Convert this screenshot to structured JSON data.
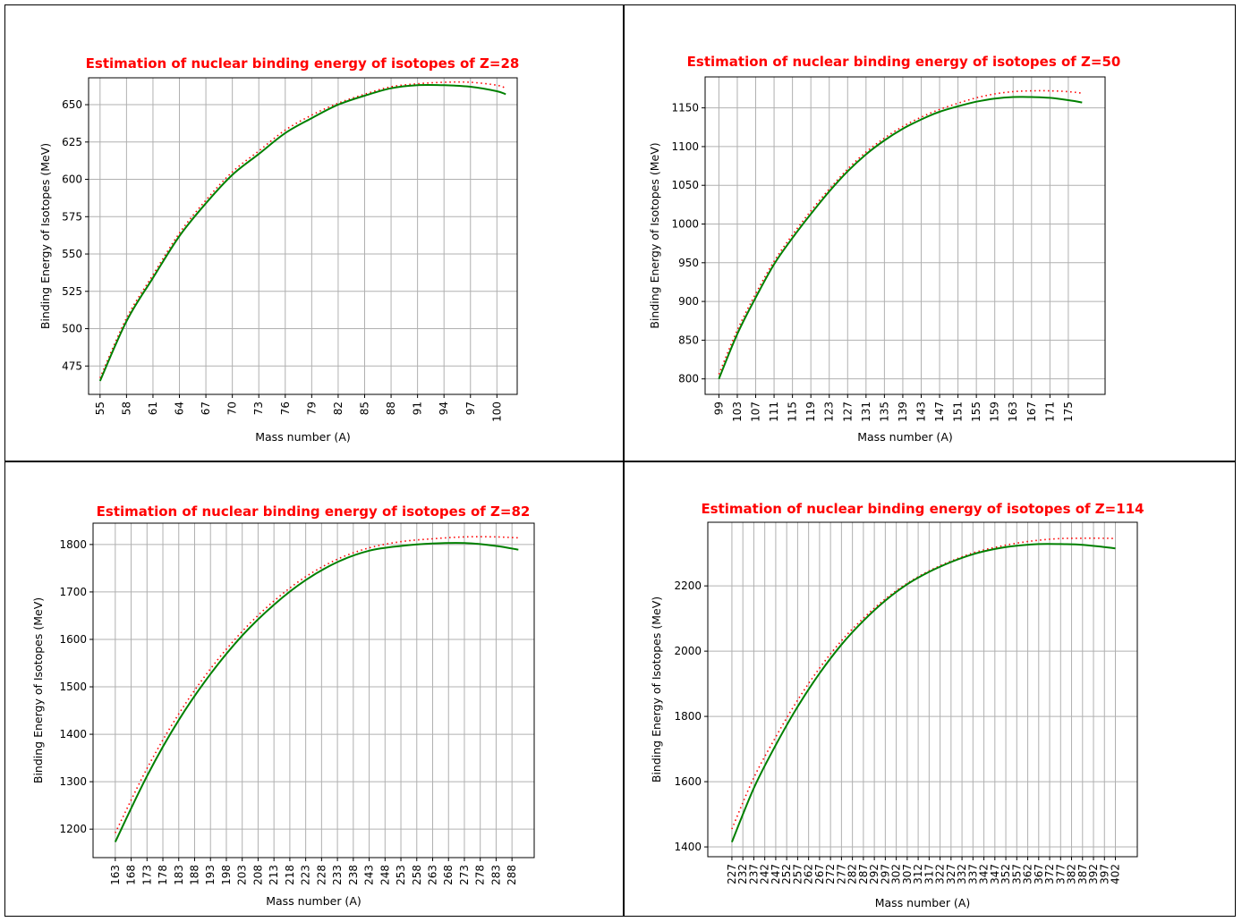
{
  "chart_data": [
    {
      "type": "line",
      "title": "Estimation of nuclear binding energy of isotopes of Z=28",
      "xlabel": "Mass number (A)",
      "ylabel": "Binding Energy of Isotopes (MeV)",
      "xlim": [
        53.7,
        102.3
      ],
      "ylim": [
        456,
        668
      ],
      "x_ticks": [
        55,
        58,
        61,
        64,
        67,
        70,
        73,
        76,
        79,
        82,
        85,
        88,
        91,
        94,
        97,
        100
      ],
      "y_ticks": [
        475,
        500,
        525,
        550,
        575,
        600,
        625,
        650
      ],
      "grid": true,
      "series": [
        {
          "style": "solid",
          "color": "#008000",
          "x": [
            55,
            58,
            61,
            64,
            67,
            70,
            73,
            76,
            79,
            82,
            85,
            88,
            91,
            94,
            97,
            100,
            101
          ],
          "y": [
            465,
            505,
            534,
            562,
            584,
            603,
            617,
            631,
            641,
            650,
            656,
            661,
            663,
            663,
            662,
            659,
            657
          ]
        },
        {
          "style": "dotted",
          "color": "#ff0000",
          "x": [
            55,
            58,
            61,
            64,
            67,
            70,
            73,
            76,
            79,
            82,
            85,
            88,
            91,
            94,
            97,
            100,
            101
          ],
          "y": [
            467,
            507,
            536,
            564,
            586,
            605,
            619,
            633,
            643,
            651,
            657,
            662,
            664,
            665,
            665,
            663,
            661
          ]
        }
      ]
    },
    {
      "type": "line",
      "title": "Estimation of nuclear binding energy of isotopes of Z=50",
      "xlabel": "Mass number (A)",
      "ylabel": "Binding Energy of Isotopes (MeV)",
      "xlim": [
        96,
        183
      ],
      "ylim": [
        780,
        1190
      ],
      "x_ticks": [
        99,
        103,
        107,
        111,
        115,
        119,
        123,
        127,
        131,
        135,
        139,
        143,
        147,
        151,
        155,
        159,
        163,
        167,
        171,
        175
      ],
      "y_ticks": [
        800,
        850,
        900,
        950,
        1000,
        1050,
        1100,
        1150
      ],
      "grid": true,
      "series": [
        {
          "style": "solid",
          "color": "#008000",
          "x": [
            99,
            103,
            107,
            111,
            115,
            119,
            123,
            127,
            131,
            135,
            139,
            143,
            147,
            151,
            155,
            159,
            163,
            167,
            171,
            175,
            178
          ],
          "y": [
            800,
            858,
            905,
            948,
            982,
            1013,
            1042,
            1068,
            1090,
            1108,
            1123,
            1135,
            1145,
            1152,
            1158,
            1162,
            1164,
            1164,
            1163,
            1160,
            1157
          ]
        },
        {
          "style": "dotted",
          "color": "#ff0000",
          "x": [
            99,
            103,
            107,
            111,
            115,
            119,
            123,
            127,
            131,
            135,
            139,
            143,
            147,
            151,
            155,
            159,
            163,
            167,
            171,
            175,
            178
          ],
          "y": [
            806,
            863,
            910,
            952,
            986,
            1017,
            1045,
            1071,
            1093,
            1111,
            1126,
            1138,
            1148,
            1156,
            1163,
            1168,
            1171,
            1172,
            1172,
            1171,
            1169
          ]
        }
      ]
    },
    {
      "type": "line",
      "title": "Estimation of nuclear binding energy of isotopes of Z=82",
      "xlabel": "Mass number (A)",
      "ylabel": "Binding Energy of Isotopes (MeV)",
      "xlim": [
        156,
        295
      ],
      "ylim": [
        1140,
        1845
      ],
      "x_ticks": [
        163,
        168,
        173,
        178,
        183,
        188,
        193,
        198,
        203,
        208,
        213,
        218,
        223,
        228,
        233,
        238,
        243,
        248,
        253,
        258,
        263,
        268,
        273,
        278,
        283,
        288
      ],
      "y_ticks": [
        1200,
        1300,
        1400,
        1500,
        1600,
        1700,
        1800
      ],
      "grid": true,
      "series": [
        {
          "style": "solid",
          "color": "#008000",
          "x": [
            163,
            173,
            183,
            193,
            203,
            213,
            223,
            233,
            243,
            253,
            263,
            273,
            283,
            290
          ],
          "y": [
            1173,
            1312,
            1430,
            1527,
            1608,
            1673,
            1725,
            1763,
            1787,
            1797,
            1802,
            1803,
            1797,
            1789
          ]
        },
        {
          "style": "dotted",
          "color": "#ff0000",
          "x": [
            163,
            173,
            183,
            193,
            203,
            213,
            223,
            233,
            243,
            253,
            263,
            273,
            283,
            290
          ],
          "y": [
            1192,
            1328,
            1443,
            1538,
            1617,
            1681,
            1732,
            1769,
            1793,
            1806,
            1812,
            1816,
            1816,
            1814
          ]
        }
      ]
    },
    {
      "type": "line",
      "title": "Estimation of nuclear binding energy of isotopes of Z=114",
      "xlabel": "Mass number (A)",
      "ylabel": "Binding Energy of Isotopes (MeV)",
      "xlim": [
        216,
        412
      ],
      "ylim": [
        1370,
        2395
      ],
      "x_ticks": [
        227,
        232,
        237,
        242,
        247,
        252,
        257,
        262,
        267,
        272,
        277,
        282,
        287,
        292,
        297,
        302,
        307,
        312,
        317,
        322,
        327,
        332,
        337,
        342,
        347,
        352,
        357,
        362,
        367,
        372,
        377,
        382,
        387,
        392,
        397,
        402
      ],
      "y_ticks": [
        1400,
        1600,
        1800,
        2000,
        2200
      ],
      "grid": true,
      "series": [
        {
          "style": "solid",
          "color": "#008000",
          "x": [
            227,
            237,
            247,
            257,
            267,
            277,
            287,
            297,
            307,
            317,
            327,
            337,
            347,
            357,
            367,
            377,
            387,
            397,
            402
          ],
          "y": [
            1415,
            1580,
            1712,
            1830,
            1932,
            2020,
            2093,
            2155,
            2205,
            2243,
            2273,
            2297,
            2313,
            2323,
            2328,
            2328,
            2326,
            2319,
            2315
          ]
        },
        {
          "style": "dotted",
          "color": "#ff0000",
          "x": [
            227,
            237,
            247,
            257,
            267,
            277,
            287,
            297,
            307,
            317,
            327,
            337,
            347,
            357,
            367,
            377,
            387,
            397,
            402
          ],
          "y": [
            1455,
            1612,
            1737,
            1850,
            1948,
            2032,
            2101,
            2160,
            2208,
            2246,
            2276,
            2301,
            2318,
            2331,
            2340,
            2345,
            2346,
            2346,
            2345
          ]
        }
      ]
    }
  ]
}
